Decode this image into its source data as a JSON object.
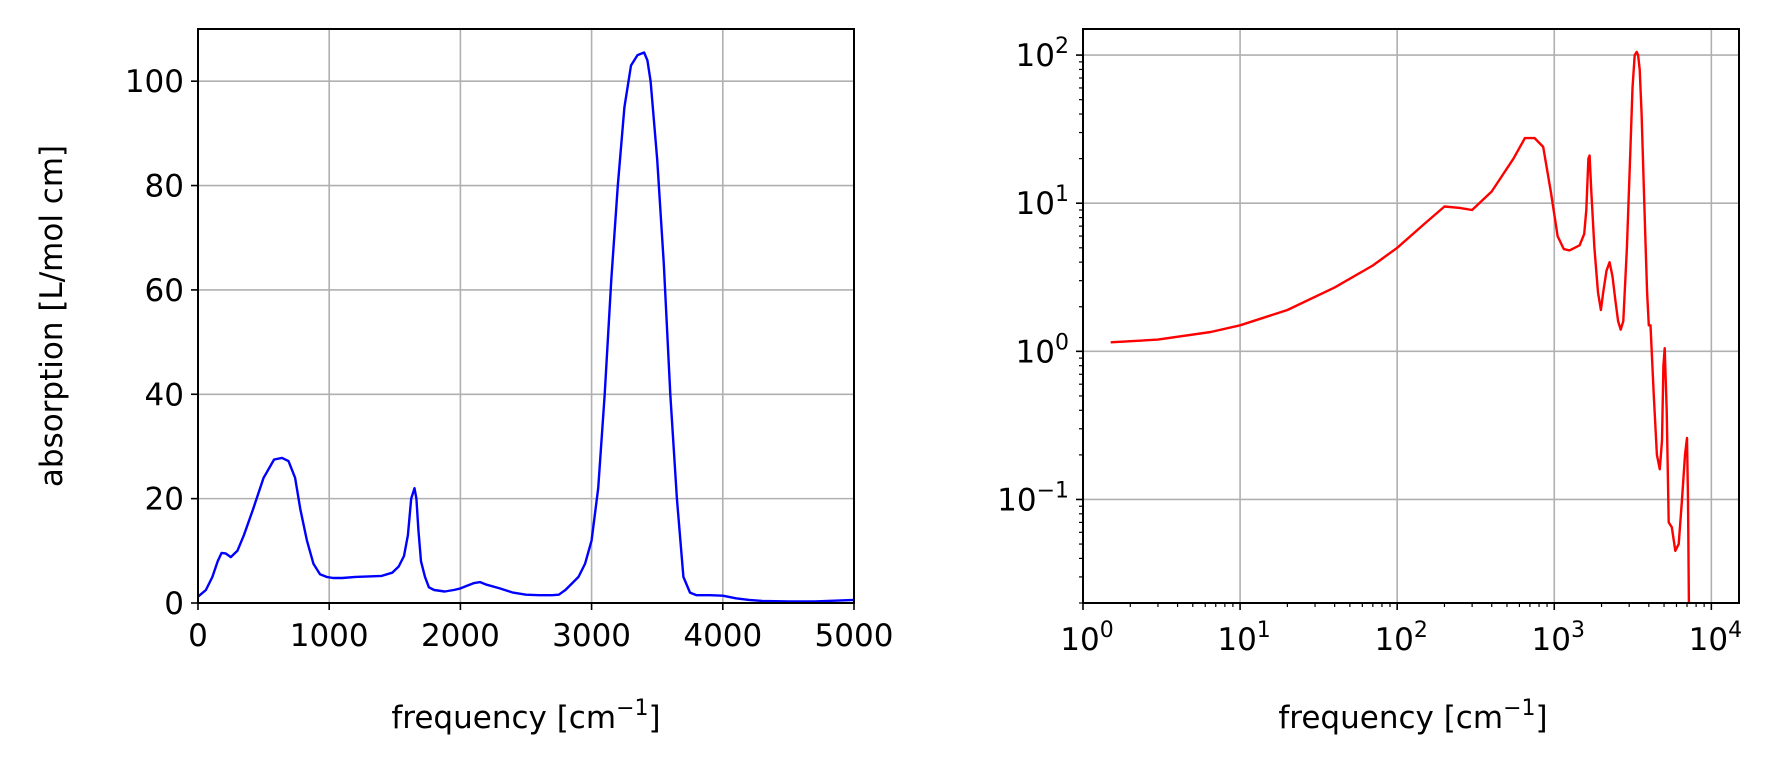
{
  "chart_data": [
    {
      "type": "line",
      "xlabel": "frequency [cm",
      "xlabel_sup": "−1",
      "xlabel_end": "]",
      "ylabel": "absorption [L/mol cm]",
      "xlim": [
        0,
        5000
      ],
      "ylim": [
        0,
        110
      ],
      "xticks": [
        0,
        1000,
        2000,
        3000,
        4000,
        5000
      ],
      "xtick_labels": [
        "0",
        "1000",
        "2000",
        "3000",
        "4000",
        "5000"
      ],
      "yticks": [
        0,
        20,
        40,
        60,
        80,
        100
      ],
      "ytick_labels": [
        "0",
        "20",
        "40",
        "60",
        "80",
        "100"
      ],
      "grid": true,
      "scale": "linear",
      "series": [
        {
          "color": "#0000ff",
          "x": [
            0,
            60,
            110,
            150,
            180,
            210,
            250,
            300,
            350,
            420,
            500,
            580,
            640,
            690,
            740,
            780,
            830,
            880,
            930,
            980,
            1030,
            1100,
            1200,
            1300,
            1400,
            1480,
            1530,
            1570,
            1600,
            1625,
            1650,
            1665,
            1680,
            1700,
            1730,
            1760,
            1800,
            1880,
            1950,
            2000,
            2050,
            2100,
            2150,
            2200,
            2300,
            2400,
            2500,
            2600,
            2700,
            2750,
            2800,
            2900,
            2950,
            3000,
            3050,
            3100,
            3150,
            3200,
            3250,
            3300,
            3350,
            3400,
            3425,
            3450,
            3500,
            3550,
            3600,
            3650,
            3700,
            3750,
            3800,
            3900,
            4000,
            4100,
            4200,
            4300,
            4500,
            4700,
            4900,
            5000
          ],
          "y": [
            1.2,
            2.5,
            5,
            8,
            9.6,
            9.5,
            8.8,
            10,
            13,
            18,
            24,
            27.5,
            27.8,
            27.2,
            24,
            18,
            12,
            7.5,
            5.5,
            5,
            4.8,
            4.8,
            5,
            5.1,
            5.2,
            5.8,
            7,
            9,
            13,
            20,
            22,
            20,
            14,
            8,
            5,
            3,
            2.5,
            2.2,
            2.5,
            2.8,
            3.3,
            3.8,
            4,
            3.5,
            2.8,
            2,
            1.6,
            1.5,
            1.5,
            1.6,
            2.5,
            5,
            7.5,
            12,
            22,
            40,
            62,
            80,
            95,
            103,
            105,
            105.5,
            104,
            100,
            85,
            65,
            40,
            20,
            5,
            2,
            1.5,
            1.5,
            1.4,
            0.9,
            0.6,
            0.4,
            0.3,
            0.3,
            0.5,
            0.6
          ]
        }
      ]
    },
    {
      "type": "line",
      "xlabel": "frequency [cm",
      "xlabel_sup": "−1",
      "xlabel_end": "]",
      "xlim": [
        1,
        15000
      ],
      "ylim": [
        0.02,
        150
      ],
      "xticks": [
        1,
        10,
        100,
        1000,
        10000
      ],
      "xtick_labels": [
        {
          "base": "10",
          "exp": "0"
        },
        {
          "base": "10",
          "exp": "1"
        },
        {
          "base": "10",
          "exp": "2"
        },
        {
          "base": "10",
          "exp": "3"
        },
        {
          "base": "10",
          "exp": "4"
        }
      ],
      "yticks": [
        0.1,
        1,
        10,
        100
      ],
      "ytick_labels": [
        {
          "base": "10",
          "exp": "−1"
        },
        {
          "base": "10",
          "exp": "0"
        },
        {
          "base": "10",
          "exp": "1"
        },
        {
          "base": "10",
          "exp": "2"
        }
      ],
      "grid": true,
      "scale": "log-log",
      "series": [
        {
          "color": "#ff0000",
          "x": [
            1.5,
            3,
            6.5,
            10,
            20,
            40,
            70,
            100,
            150,
            200,
            250,
            300,
            400,
            550,
            650,
            750,
            850,
            950,
            1050,
            1150,
            1250,
            1350,
            1450,
            1550,
            1600,
            1650,
            1680,
            1720,
            1800,
            1900,
            1980,
            2050,
            2150,
            2250,
            2350,
            2450,
            2550,
            2650,
            2750,
            2900,
            3050,
            3150,
            3250,
            3350,
            3420,
            3500,
            3600,
            3700,
            3800,
            3900,
            4000,
            4100,
            4300,
            4500,
            4700,
            4850,
            4950,
            5050,
            5200,
            5350,
            5600,
            5900,
            6200,
            6500,
            6800,
            7000,
            7100,
            7200
          ],
          "y": [
            1.15,
            1.2,
            1.35,
            1.5,
            1.9,
            2.7,
            3.8,
            5,
            7.3,
            9.5,
            9.3,
            9,
            12,
            20,
            27.5,
            27.5,
            24,
            12,
            6,
            4.9,
            4.8,
            5,
            5.2,
            6.2,
            9,
            20,
            21,
            12,
            5,
            2.5,
            1.9,
            2.5,
            3.5,
            4,
            3.2,
            2.2,
            1.6,
            1.4,
            1.6,
            5,
            22,
            60,
            100,
            105,
            100,
            80,
            40,
            15,
            6,
            2.5,
            1.5,
            1.5,
            0.5,
            0.2,
            0.16,
            0.25,
            0.8,
            1.05,
            0.4,
            0.07,
            0.065,
            0.045,
            0.05,
            0.1,
            0.2,
            0.26,
            0.1,
            0.02
          ]
        }
      ]
    }
  ]
}
